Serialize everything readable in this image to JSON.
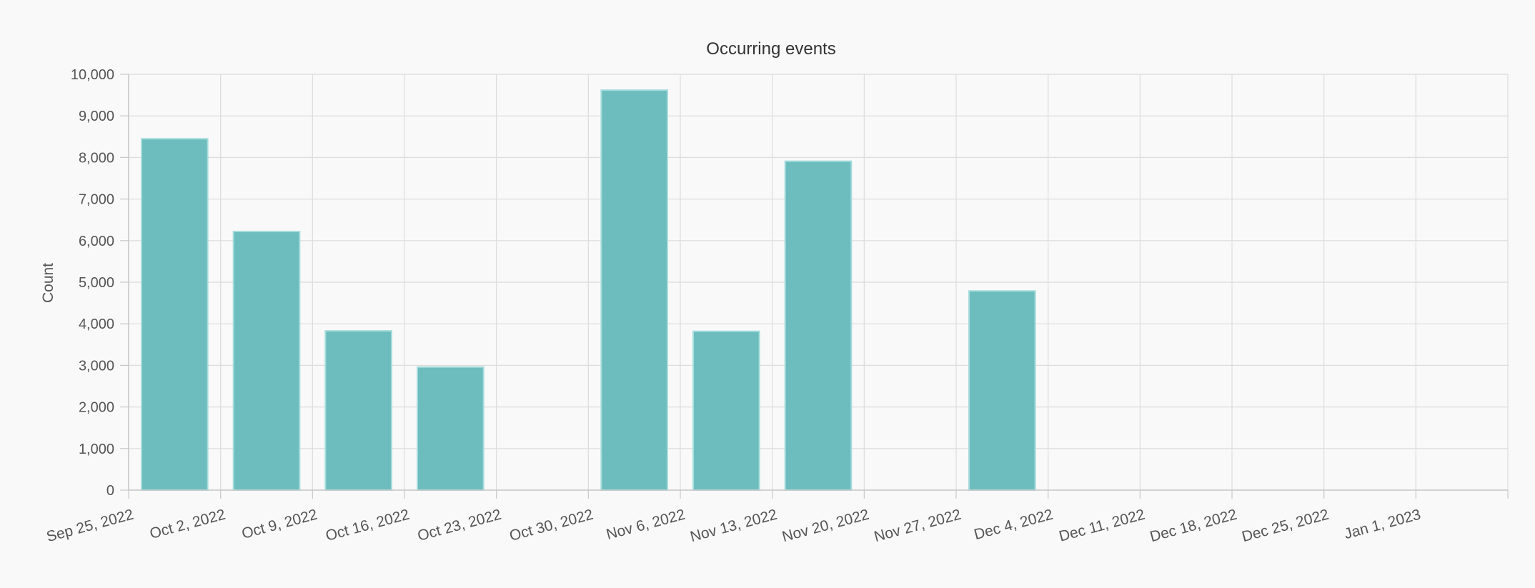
{
  "chart_data": {
    "type": "bar",
    "title": "Occurring events",
    "xlabel": "",
    "ylabel": "Count",
    "categories": [
      "Sep 25, 2022",
      "Oct 2, 2022",
      "Oct 9, 2022",
      "Oct 16, 2022",
      "Oct 23, 2022",
      "Oct 30, 2022",
      "Nov 6, 2022",
      "Nov 13, 2022",
      "Nov 20, 2022",
      "Nov 27, 2022",
      "Dec 4, 2022",
      "Dec 11, 2022",
      "Dec 18, 2022",
      "Dec 25, 2022",
      "Jan 1, 2023"
    ],
    "values": [
      8450,
      6220,
      3830,
      2960,
      0,
      9620,
      3820,
      7910,
      0,
      4790,
      0,
      0,
      0,
      0,
      0
    ],
    "ylim": [
      0,
      10000
    ],
    "yticks": [
      "0",
      "1,000",
      "2,000",
      "3,000",
      "4,000",
      "5,000",
      "6,000",
      "7,000",
      "8,000",
      "9,000",
      "10,000"
    ],
    "grid": true,
    "legend": "none",
    "colors": {
      "bar_fill": "#6dbdbf",
      "bar_stroke": "#a7dcdc",
      "grid": "#dcdcdc",
      "axis": "#c8c8c8",
      "text": "#555555",
      "title": "#333333",
      "background": "#f9f9f9"
    }
  }
}
